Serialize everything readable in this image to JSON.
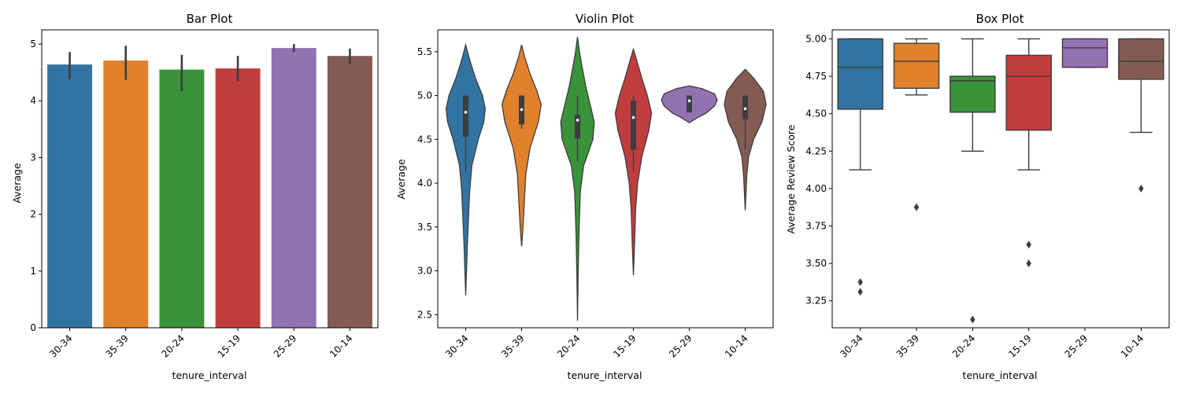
{
  "colors": [
    "#3274a1",
    "#e1812c",
    "#3a923a",
    "#c03d3e",
    "#9372b2",
    "#845b53"
  ],
  "chart_data": [
    {
      "type": "bar",
      "title": "Bar Plot",
      "xlabel": "tenure_interval",
      "ylabel": "Average",
      "categories": [
        "30-34",
        "35-39",
        "20-24",
        "15-19",
        "25-29",
        "10-14"
      ],
      "values": [
        4.64,
        4.71,
        4.55,
        4.57,
        4.93,
        4.79
      ],
      "ci": [
        [
          4.38,
          4.86
        ],
        [
          4.37,
          4.97
        ],
        [
          4.17,
          4.81
        ],
        [
          4.34,
          4.79
        ],
        [
          4.86,
          5.0
        ],
        [
          4.64,
          4.92
        ]
      ],
      "ylim": [
        0,
        5.25
      ],
      "yticks": [
        "0",
        "1",
        "2",
        "3",
        "4",
        "5"
      ]
    },
    {
      "type": "violin",
      "title": "Violin Plot",
      "xlabel": "tenure_interval",
      "ylabel": "Average",
      "categories": [
        "30-34",
        "35-39",
        "20-24",
        "15-19",
        "25-29",
        "10-14"
      ],
      "violins": [
        {
          "profile": [
            [
              2.72,
              0.0
            ],
            [
              3.0,
              0.03
            ],
            [
              3.3,
              0.06
            ],
            [
              3.6,
              0.1
            ],
            [
              3.9,
              0.14
            ],
            [
              4.2,
              0.22
            ],
            [
              4.5,
              0.45
            ],
            [
              4.7,
              0.65
            ],
            [
              4.85,
              0.7
            ],
            [
              5.0,
              0.6
            ],
            [
              5.2,
              0.35
            ],
            [
              5.4,
              0.15
            ],
            [
              5.58,
              0.0
            ]
          ],
          "q1": 4.53,
          "median": 4.81,
          "q3": 5.0,
          "whisker_low": 4.13,
          "whisker_high": 5.0
        },
        {
          "profile": [
            [
              3.28,
              0.0
            ],
            [
              3.5,
              0.05
            ],
            [
              3.8,
              0.1
            ],
            [
              4.1,
              0.15
            ],
            [
              4.4,
              0.3
            ],
            [
              4.7,
              0.6
            ],
            [
              4.9,
              0.7
            ],
            [
              5.05,
              0.55
            ],
            [
              5.25,
              0.3
            ],
            [
              5.45,
              0.1
            ],
            [
              5.58,
              0.0
            ]
          ],
          "q1": 4.67,
          "median": 4.84,
          "q3": 5.0,
          "whisker_low": 4.62,
          "whisker_high": 5.0
        },
        {
          "profile": [
            [
              2.43,
              0.0
            ],
            [
              2.9,
              0.02
            ],
            [
              3.4,
              0.05
            ],
            [
              3.9,
              0.1
            ],
            [
              4.2,
              0.22
            ],
            [
              4.5,
              0.55
            ],
            [
              4.7,
              0.6
            ],
            [
              4.9,
              0.45
            ],
            [
              5.1,
              0.3
            ],
            [
              5.3,
              0.18
            ],
            [
              5.5,
              0.07
            ],
            [
              5.67,
              0.0
            ]
          ],
          "q1": 4.51,
          "median": 4.72,
          "q3": 4.78,
          "whisker_low": 4.25,
          "whisker_high": 5.0
        },
        {
          "profile": [
            [
              2.95,
              0.0
            ],
            [
              3.3,
              0.04
            ],
            [
              3.7,
              0.08
            ],
            [
              4.0,
              0.15
            ],
            [
              4.3,
              0.3
            ],
            [
              4.6,
              0.55
            ],
            [
              4.8,
              0.65
            ],
            [
              5.0,
              0.5
            ],
            [
              5.2,
              0.3
            ],
            [
              5.4,
              0.12
            ],
            [
              5.53,
              0.0
            ]
          ],
          "q1": 4.38,
          "median": 4.75,
          "q3": 4.94,
          "whisker_low": 4.13,
          "whisker_high": 5.0
        },
        {
          "profile": [
            [
              4.69,
              0.0
            ],
            [
              4.75,
              0.3
            ],
            [
              4.8,
              0.6
            ],
            [
              4.88,
              0.9
            ],
            [
              4.95,
              1.0
            ],
            [
              5.02,
              0.9
            ],
            [
              5.08,
              0.45
            ],
            [
              5.11,
              0.0
            ]
          ],
          "q1": 4.81,
          "median": 4.94,
          "q3": 5.0,
          "whisker_low": 4.81,
          "whisker_high": 5.0
        },
        {
          "profile": [
            [
              3.69,
              0.0
            ],
            [
              3.9,
              0.03
            ],
            [
              4.1,
              0.06
            ],
            [
              4.3,
              0.12
            ],
            [
              4.5,
              0.3
            ],
            [
              4.7,
              0.6
            ],
            [
              4.9,
              0.75
            ],
            [
              5.05,
              0.65
            ],
            [
              5.2,
              0.3
            ],
            [
              5.3,
              0.0
            ]
          ],
          "q1": 4.73,
          "median": 4.85,
          "q3": 5.0,
          "whisker_low": 4.38,
          "whisker_high": 5.0
        }
      ],
      "ylim": [
        2.35,
        5.75
      ],
      "yticks": [
        "2.5",
        "3.0",
        "3.5",
        "4.0",
        "4.5",
        "5.0",
        "5.5"
      ]
    },
    {
      "type": "box",
      "title": "Box Plot",
      "xlabel": "tenure_interval",
      "ylabel": "Average Review Score",
      "categories": [
        "30-34",
        "35-39",
        "20-24",
        "15-19",
        "25-29",
        "10-14"
      ],
      "boxes": [
        {
          "whisker_low": 4.125,
          "q1": 4.53,
          "median": 4.81,
          "q3": 5.0,
          "whisker_high": 5.0,
          "outliers": [
            3.375,
            3.31
          ]
        },
        {
          "whisker_low": 4.625,
          "q1": 4.67,
          "median": 4.85,
          "q3": 4.97,
          "whisker_high": 5.0,
          "outliers": [
            3.875
          ]
        },
        {
          "whisker_low": 4.25,
          "q1": 4.51,
          "median": 4.72,
          "q3": 4.75,
          "whisker_high": 5.0,
          "outliers": [
            3.125
          ]
        },
        {
          "whisker_low": 4.125,
          "q1": 4.39,
          "median": 4.75,
          "q3": 4.89,
          "whisker_high": 5.0,
          "outliers": [
            3.625,
            3.5
          ]
        },
        {
          "whisker_low": 4.81,
          "q1": 4.81,
          "median": 4.94,
          "q3": 5.0,
          "whisker_high": 5.0,
          "outliers": []
        },
        {
          "whisker_low": 4.375,
          "q1": 4.73,
          "median": 4.85,
          "q3": 5.0,
          "whisker_high": 5.0,
          "outliers": [
            4.0
          ]
        }
      ],
      "ylim": [
        3.07,
        5.06
      ],
      "yticks": [
        "3.25",
        "3.50",
        "3.75",
        "4.00",
        "4.25",
        "4.50",
        "4.75",
        "5.00"
      ]
    }
  ]
}
